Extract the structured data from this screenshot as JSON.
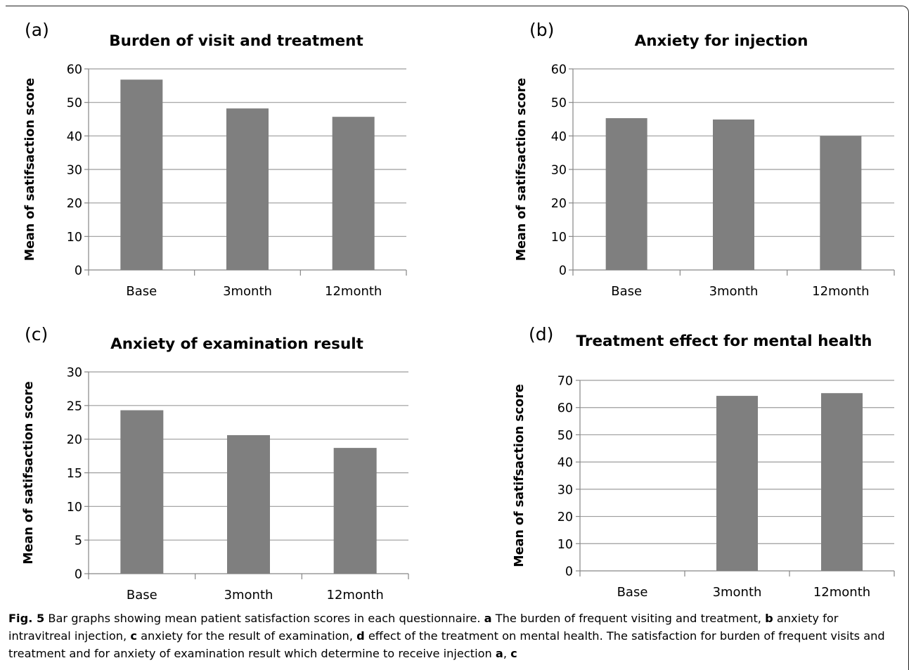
{
  "chart_data": [
    {
      "panel_label": "(a)",
      "type": "bar",
      "title": "Burden of visit and treatment",
      "ylabel": "Mean of satifsaction score",
      "xlabel": "",
      "categories": [
        "Base",
        "3month",
        "12month"
      ],
      "values": [
        56.8,
        48.2,
        45.7
      ],
      "ylim": [
        0,
        60
      ],
      "yticks": [
        0,
        10,
        20,
        30,
        40,
        50,
        60
      ],
      "grid": true,
      "bar_color": "#7f7f7f"
    },
    {
      "panel_label": "(b)",
      "type": "bar",
      "title": "Anxiety for injection",
      "ylabel": "Mean of satifsaction score",
      "xlabel": "",
      "categories": [
        "Base",
        "3month",
        "12month"
      ],
      "values": [
        45.3,
        44.9,
        40.0
      ],
      "ylim": [
        0,
        60
      ],
      "yticks": [
        0,
        10,
        20,
        30,
        40,
        50,
        60
      ],
      "grid": true,
      "bar_color": "#7f7f7f"
    },
    {
      "panel_label": "(c)",
      "type": "bar",
      "title": "Anxiety of examination result",
      "ylabel": "Mean of satifsaction score",
      "xlabel": "",
      "categories": [
        "Base",
        "3month",
        "12month"
      ],
      "values": [
        24.3,
        20.6,
        18.7
      ],
      "ylim": [
        0,
        30
      ],
      "yticks": [
        0,
        5,
        10,
        15,
        20,
        25,
        30
      ],
      "grid": true,
      "bar_color": "#7f7f7f"
    },
    {
      "panel_label": "(d)",
      "type": "bar",
      "title": "Treatment effect for mental health",
      "ylabel": "Mean of satifsaction score",
      "xlabel": "",
      "categories": [
        "Base",
        "3month",
        "12month"
      ],
      "values": [
        0,
        64.3,
        65.3
      ],
      "ylim": [
        0,
        70
      ],
      "yticks": [
        0,
        10,
        20,
        30,
        40,
        50,
        60,
        70
      ],
      "grid": true,
      "bar_color": "#7f7f7f"
    }
  ],
  "caption": {
    "figure_label": "Fig. 5",
    "text_1": " Bar graphs showing mean patient satisfaction scores in each questionnaire. ",
    "ref_a": "a",
    "text_2": " The burden of frequent visiting and treatment, ",
    "ref_b": "b",
    "text_3": " anxiety for intravitreal injection, ",
    "ref_c": "c",
    "text_4": " anxiety for the result of examination, ",
    "ref_d": "d",
    "text_5": " effect of the treatment on mental health. The satisfaction for burden of frequent visits and treatment and for anxiety of examination result which determine to receive injection ",
    "ref_a2": "a",
    "text_6": ", ",
    "ref_c2": "c"
  }
}
